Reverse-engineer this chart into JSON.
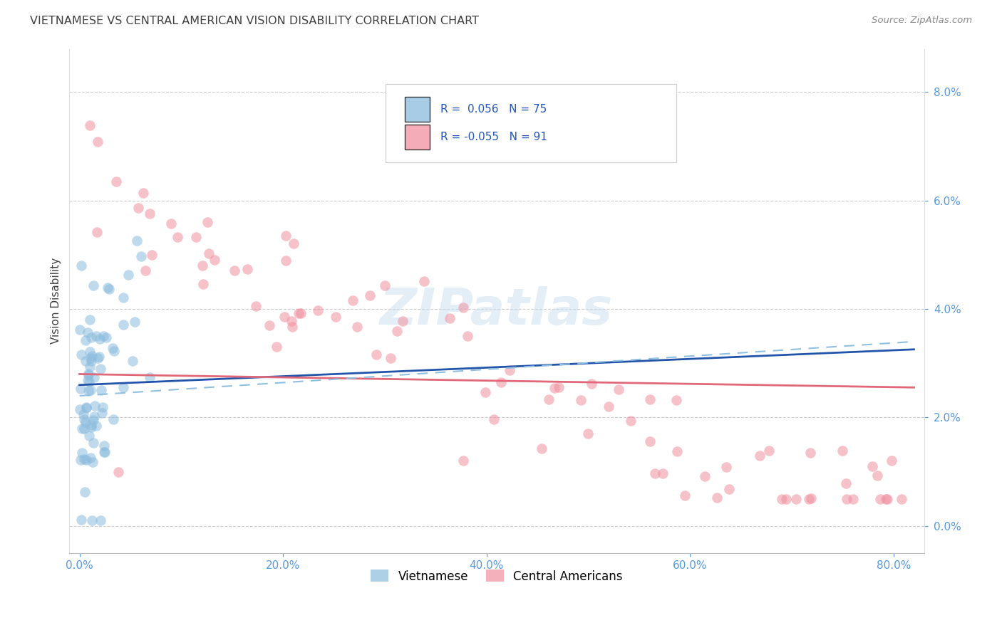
{
  "title": "VIETNAMESE VS CENTRAL AMERICAN VISION DISABILITY CORRELATION CHART",
  "source": "Source: ZipAtlas.com",
  "ylabel": "Vision Disability",
  "xlabel_vals": [
    0.0,
    0.2,
    0.4,
    0.6,
    0.8
  ],
  "ylabel_vals": [
    0.0,
    0.02,
    0.04,
    0.06,
    0.08
  ],
  "xlim": [
    -0.01,
    0.83
  ],
  "ylim": [
    -0.005,
    0.088
  ],
  "viet_R": 0.056,
  "viet_N": 75,
  "ca_R": -0.055,
  "ca_N": 91,
  "viet_color": "#8bbcde",
  "ca_color": "#f090a0",
  "viet_line_color": "#2255aa",
  "ca_line_color": "#e06878",
  "viet_dash_color": "#90c0e0",
  "watermark": "ZIPatlas",
  "background_color": "#ffffff",
  "grid_color": "#cccccc",
  "title_color": "#404040",
  "axis_tick_color": "#5599dd",
  "ylabel_color": "#404040",
  "stats_text_color": "#2255bb",
  "stats_viet": "R =  0.056   N = 75",
  "stats_ca": "R = -0.055   N = 91",
  "legend_viet": "Vietnamese",
  "legend_ca": "Central Americans"
}
